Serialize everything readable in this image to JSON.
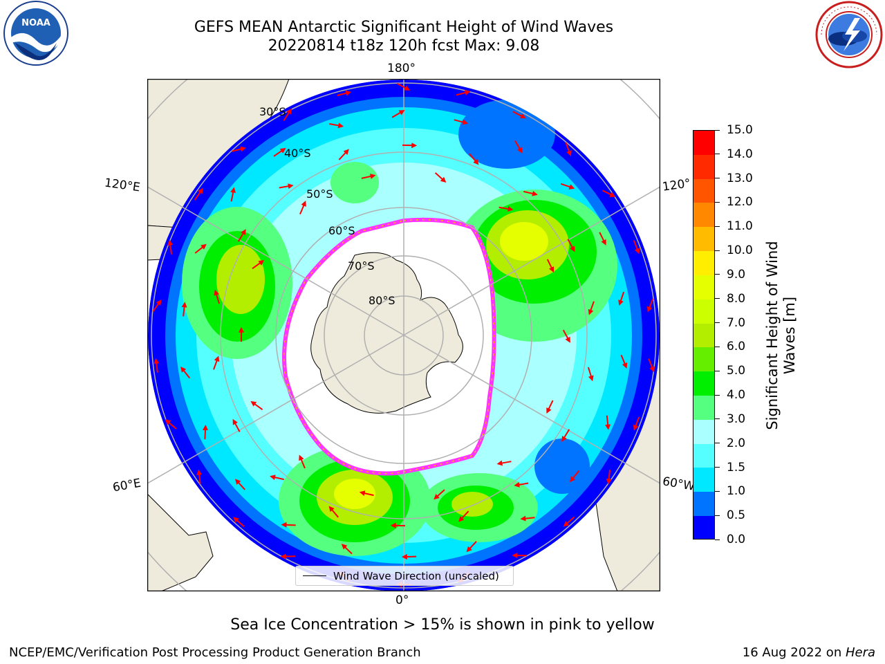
{
  "title": {
    "line1": "GEFS MEAN Antarctic Significant Height of Wind Waves",
    "line2": "20220814 t18z 120h fcst   Max: 9.08"
  },
  "longitude_labels": {
    "top": "180°",
    "bottom": "0°",
    "left_upper": "120°E",
    "left_lower": "60°E",
    "right_upper": "120°",
    "right_lower": "60°W"
  },
  "latitude_labels": [
    "30°S",
    "40°S",
    "50°S",
    "60°S",
    "70°S",
    "80°S"
  ],
  "legend": {
    "label": "Wind Wave Direction (unscaled)"
  },
  "colorbar": {
    "label_line1": "Significant Height of Wind",
    "label_line2": "Waves [m]",
    "ticks": [
      "0.0",
      "0.5",
      "1.0",
      "1.5",
      "2.0",
      "3.0",
      "4.0",
      "5.0",
      "6.0",
      "7.0",
      "8.0",
      "9.0",
      "10.0",
      "11.0",
      "12.0",
      "13.0",
      "14.0",
      "15.0"
    ],
    "colors": [
      "#0000ff",
      "#0073ff",
      "#00e8ff",
      "#55ffff",
      "#aaffff",
      "#55ff80",
      "#00ee00",
      "#66ee00",
      "#b3ee00",
      "#ccff00",
      "#e6ff00",
      "#ffee00",
      "#ffbb00",
      "#ff8800",
      "#ff5500",
      "#ff2a00",
      "#ff0000"
    ]
  },
  "colors": {
    "land": "#efebdc",
    "ice_edge_pink": "#ff33ff",
    "arrow": "#ff0000",
    "grid": "#b0b0b0"
  },
  "caption": "Sea Ice Concentration > 15% is shown in pink to yellow",
  "footer": {
    "left": "NCEP/EMC/Verification Post Processing Product Generation Branch",
    "right_prefix": "16 Aug 2022 on ",
    "right_host": "Hera"
  },
  "logos": {
    "noaa": "NOAA",
    "nws": "NATIONAL WEATHER SERVICE"
  },
  "icons": {
    "noaa": "noaa-logo-icon",
    "nws": "nws-logo-icon"
  }
}
